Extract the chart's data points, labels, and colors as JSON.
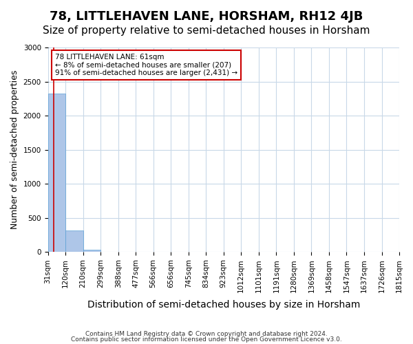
{
  "title": "78, LITTLEHAVEN LANE, HORSHAM, RH12 4JB",
  "subtitle": "Size of property relative to semi-detached houses in Horsham",
  "xlabel": "Distribution of semi-detached houses by size in Horsham",
  "ylabel": "Number of semi-detached properties",
  "footer1": "Contains HM Land Registry data © Crown copyright and database right 2024.",
  "footer2": "Contains public sector information licensed under the Open Government Licence v3.0.",
  "annotation_title": "78 LITTLEHAVEN LANE: 61sqm",
  "annotation_line2": "← 8% of semi-detached houses are smaller (207)",
  "annotation_line3": "91% of semi-detached houses are larger (2,431) →",
  "property_size": 61,
  "bin_edges": [
    31,
    120,
    210,
    299,
    388,
    477,
    566,
    656,
    745,
    834,
    923,
    1012,
    1101,
    1191,
    1280,
    1369,
    1458,
    1547,
    1637,
    1726,
    1815
  ],
  "bin_heights": [
    2320,
    320,
    35,
    8,
    3,
    2,
    1,
    1,
    0,
    1,
    0,
    0,
    0,
    0,
    0,
    0,
    0,
    0,
    0,
    1
  ],
  "bar_color": "#aec6e8",
  "bar_edge_color": "#5a9fd4",
  "vline_color": "#cc0000",
  "annotation_box_color": "#cc0000",
  "grid_color": "#c8d8e8",
  "ylim": [
    0,
    3000
  ],
  "title_fontsize": 13,
  "subtitle_fontsize": 11,
  "tick_fontsize": 7.5,
  "ylabel_fontsize": 9,
  "xlabel_fontsize": 10
}
